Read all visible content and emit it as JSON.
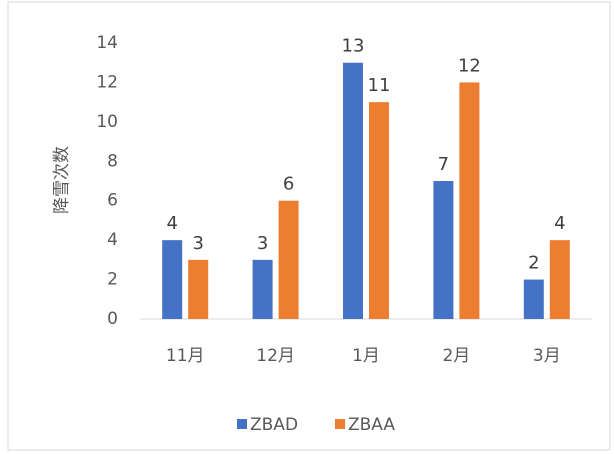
{
  "chart_data": {
    "type": "bar",
    "y_label": "降雪次数",
    "categories": [
      "11月",
      "12月",
      "1月",
      "2月",
      "3月"
    ],
    "series": [
      {
        "name": "ZBAD",
        "color": "#4472c4",
        "values": [
          4,
          3,
          13,
          7,
          2
        ]
      },
      {
        "name": "ZBAA",
        "color": "#ed7d31",
        "values": [
          3,
          6,
          11,
          12,
          4
        ]
      }
    ],
    "ylim": [
      0,
      14
    ],
    "yticks": [
      0,
      2,
      4,
      6,
      8,
      10,
      12,
      14
    ],
    "grid": false,
    "legend": "bottom"
  }
}
